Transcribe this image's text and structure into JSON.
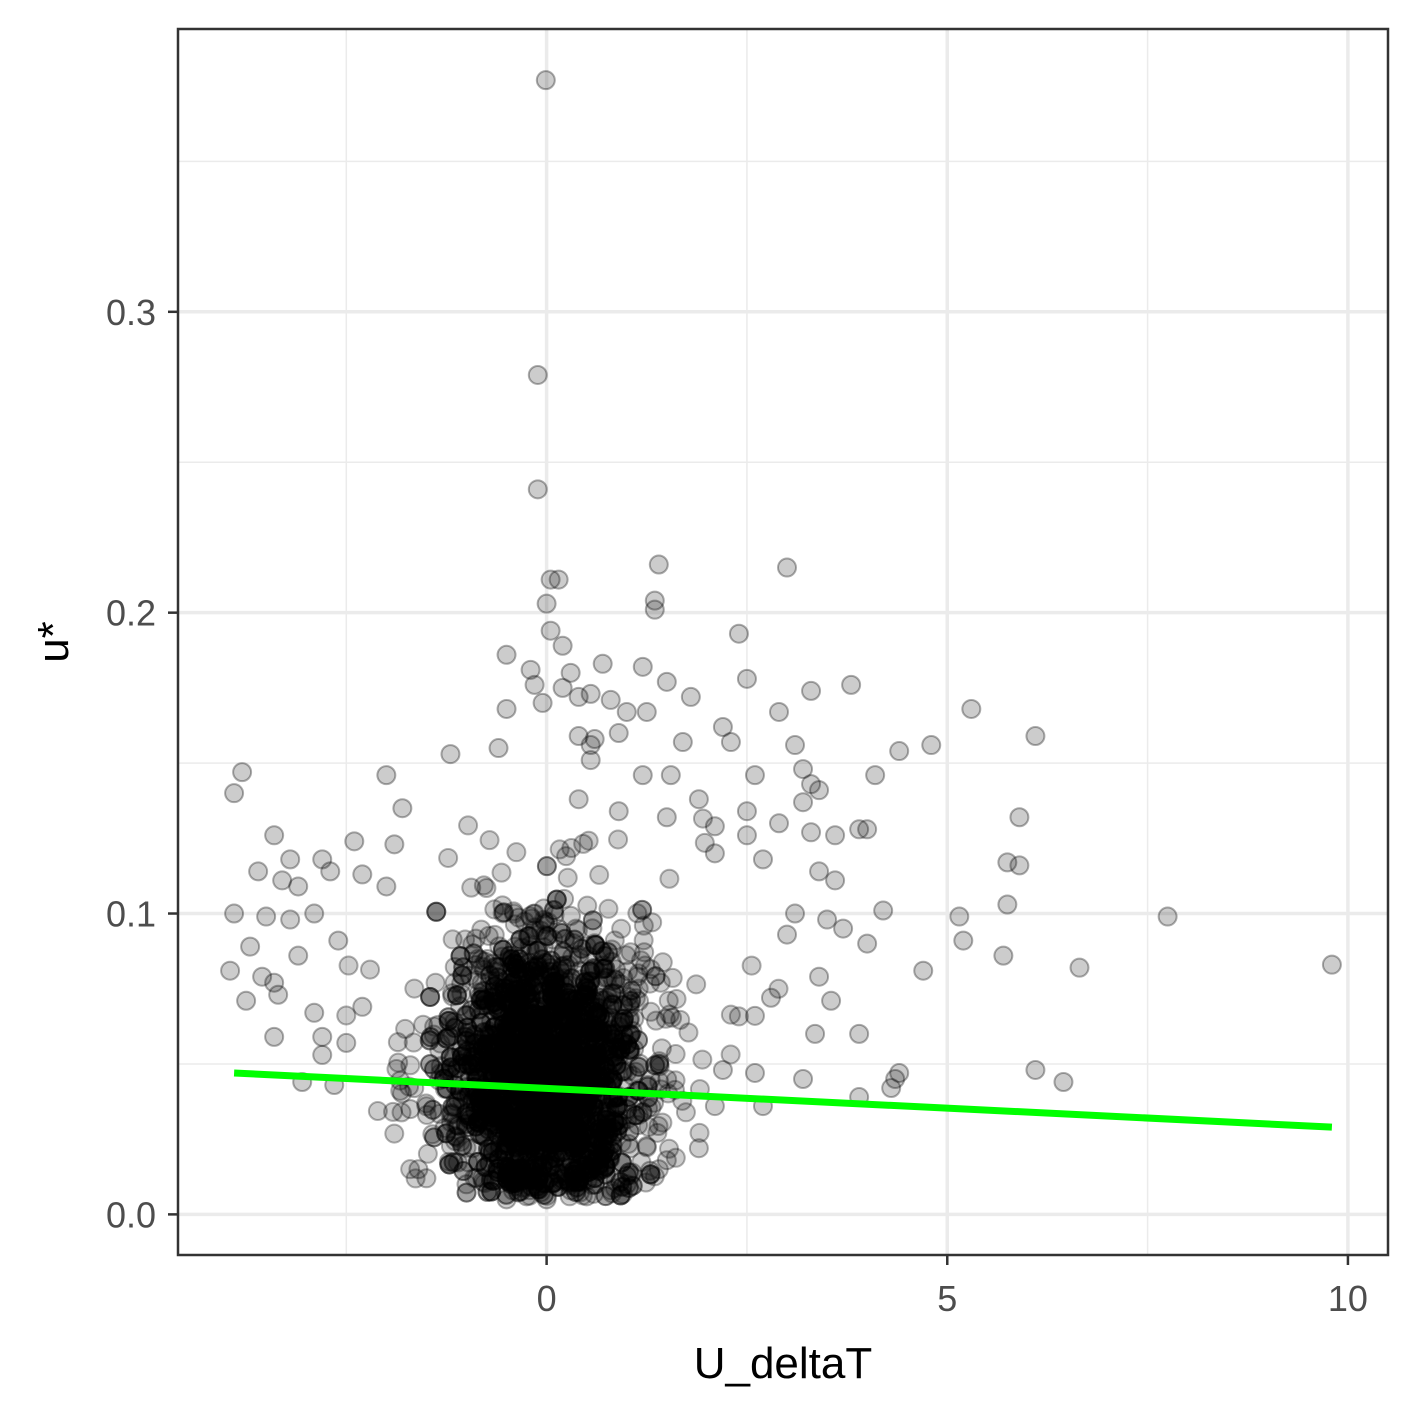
{
  "chart_data": {
    "type": "scatter",
    "xlabel": "U_deltaT",
    "ylabel": "u*",
    "xlim": [
      -4.6,
      10.5
    ],
    "ylim": [
      -0.0135,
      0.394
    ],
    "x_ticks": [
      0,
      5,
      10
    ],
    "x_tick_labels": [
      "0",
      "5",
      "10"
    ],
    "y_ticks": [
      0.0,
      0.1,
      0.2,
      0.3
    ],
    "y_tick_labels": [
      "0.0",
      "0.1",
      "0.2",
      "0.3"
    ],
    "grid": true,
    "legend": "none",
    "colors": {
      "points": "#000000",
      "fit_line": "#00ff00",
      "grid": "#ebebeb",
      "panel_border": "#333333"
    },
    "fit_line": {
      "x": [
        -3.9,
        9.8
      ],
      "y": [
        0.047,
        0.029
      ]
    },
    "points": [
      [
        -0.01,
        0.377
      ],
      [
        -0.11,
        0.279
      ],
      [
        -0.11,
        0.241
      ],
      [
        1.4,
        0.216
      ],
      [
        3.0,
        0.215
      ],
      [
        0.15,
        0.211
      ],
      [
        0.05,
        0.211
      ],
      [
        0.0,
        0.203
      ],
      [
        1.35,
        0.204
      ],
      [
        1.35,
        0.201
      ],
      [
        0.05,
        0.194
      ],
      [
        2.4,
        0.193
      ],
      [
        0.2,
        0.189
      ],
      [
        -0.5,
        0.186
      ],
      [
        0.7,
        0.183
      ],
      [
        1.2,
        0.182
      ],
      [
        -0.2,
        0.181
      ],
      [
        0.3,
        0.18
      ],
      [
        2.5,
        0.178
      ],
      [
        1.5,
        0.177
      ],
      [
        3.8,
        0.176
      ],
      [
        -0.15,
        0.176
      ],
      [
        0.2,
        0.175
      ],
      [
        3.3,
        0.174
      ],
      [
        0.55,
        0.173
      ],
      [
        1.8,
        0.172
      ],
      [
        0.4,
        0.172
      ],
      [
        0.8,
        0.171
      ],
      [
        -0.05,
        0.17
      ],
      [
        -0.5,
        0.168
      ],
      [
        5.3,
        0.168
      ],
      [
        2.9,
        0.167
      ],
      [
        1.0,
        0.167
      ],
      [
        1.25,
        0.167
      ],
      [
        2.2,
        0.162
      ],
      [
        0.9,
        0.16
      ],
      [
        6.1,
        0.159
      ],
      [
        0.4,
        0.159
      ],
      [
        0.6,
        0.158
      ],
      [
        1.7,
        0.157
      ],
      [
        2.3,
        0.157
      ],
      [
        3.1,
        0.156
      ],
      [
        0.55,
        0.156
      ],
      [
        4.8,
        0.156
      ],
      [
        -0.6,
        0.155
      ],
      [
        4.4,
        0.154
      ],
      [
        -1.2,
        0.153
      ],
      [
        0.55,
        0.151
      ],
      [
        3.2,
        0.148
      ],
      [
        -3.8,
        0.147
      ],
      [
        4.1,
        0.146
      ],
      [
        2.6,
        0.146
      ],
      [
        1.2,
        0.146
      ],
      [
        -2.0,
        0.146
      ],
      [
        1.55,
        0.146
      ],
      [
        3.3,
        0.143
      ],
      [
        3.4,
        0.141
      ],
      [
        -3.9,
        0.14
      ],
      [
        1.9,
        0.138
      ],
      [
        0.4,
        0.138
      ],
      [
        3.2,
        0.137
      ],
      [
        0.9,
        0.134
      ],
      [
        2.5,
        0.134
      ],
      [
        1.5,
        0.132
      ],
      [
        -1.8,
        0.135
      ],
      [
        5.9,
        0.132
      ],
      [
        2.9,
        0.13
      ],
      [
        2.1,
        0.129
      ],
      [
        4.0,
        0.128
      ],
      [
        3.9,
        0.128
      ],
      [
        3.3,
        0.127
      ],
      [
        2.5,
        0.126
      ],
      [
        3.6,
        0.126
      ],
      [
        -3.4,
        0.126
      ],
      [
        -2.4,
        0.124
      ],
      [
        -1.9,
        0.123
      ],
      [
        -3.6,
        0.114
      ],
      [
        2.1,
        0.12
      ],
      [
        2.7,
        0.118
      ],
      [
        5.75,
        0.117
      ],
      [
        5.9,
        0.116
      ],
      [
        3.4,
        0.114
      ],
      [
        3.6,
        0.111
      ],
      [
        -3.2,
        0.118
      ],
      [
        -3.3,
        0.111
      ],
      [
        -2.8,
        0.118
      ],
      [
        -2.7,
        0.114
      ],
      [
        -2.3,
        0.113
      ],
      [
        -2.0,
        0.109
      ],
      [
        -3.1,
        0.109
      ],
      [
        -3.9,
        0.1
      ],
      [
        -3.5,
        0.099
      ],
      [
        -3.2,
        0.098
      ],
      [
        -2.9,
        0.1
      ],
      [
        -2.6,
        0.091
      ],
      [
        5.75,
        0.103
      ],
      [
        4.2,
        0.101
      ],
      [
        5.15,
        0.099
      ],
      [
        3.1,
        0.1
      ],
      [
        3.5,
        0.098
      ],
      [
        3.0,
        0.093
      ],
      [
        3.7,
        0.095
      ],
      [
        7.75,
        0.099
      ],
      [
        5.2,
        0.091
      ],
      [
        4.0,
        0.09
      ],
      [
        -3.7,
        0.089
      ],
      [
        -3.1,
        0.086
      ],
      [
        5.7,
        0.086
      ],
      [
        9.8,
        0.083
      ],
      [
        6.65,
        0.082
      ],
      [
        4.7,
        0.081
      ],
      [
        -3.95,
        0.081
      ],
      [
        -3.4,
        0.077
      ],
      [
        -3.55,
        0.079
      ],
      [
        3.4,
        0.079
      ],
      [
        -3.75,
        0.071
      ],
      [
        -3.35,
        0.073
      ],
      [
        2.8,
        0.072
      ],
      [
        3.55,
        0.071
      ],
      [
        -2.3,
        0.069
      ],
      [
        -2.9,
        0.067
      ],
      [
        2.6,
        0.066
      ],
      [
        -3.4,
        0.059
      ],
      [
        3.35,
        0.06
      ],
      [
        3.9,
        0.06
      ],
      [
        -2.8,
        0.059
      ],
      [
        -2.5,
        0.057
      ],
      [
        -2.8,
        0.053
      ],
      [
        2.2,
        0.048
      ],
      [
        2.6,
        0.047
      ],
      [
        -3.05,
        0.044
      ],
      [
        -2.65,
        0.043
      ],
      [
        6.1,
        0.048
      ],
      [
        4.4,
        0.047
      ],
      [
        4.35,
        0.045
      ],
      [
        6.45,
        0.044
      ],
      [
        4.3,
        0.042
      ],
      [
        3.2,
        0.045
      ],
      [
        3.9,
        0.039
      ],
      [
        2.7,
        0.036
      ],
      [
        2.1,
        0.036
      ],
      [
        -1.7,
        0.035
      ],
      [
        1.9,
        0.022
      ],
      [
        1.4,
        0.015
      ],
      [
        1.5,
        0.018
      ],
      [
        -1.6,
        0.015
      ],
      [
        -1.5,
        0.012
      ],
      [
        0.8,
        0.008
      ],
      [
        0.5,
        0.006
      ],
      [
        -0.5,
        0.005
      ],
      [
        0.0,
        0.005
      ],
      [
        -0.25,
        0.006
      ],
      [
        0.3,
        0.008
      ],
      [
        -1.0,
        0.01
      ],
      [
        1.0,
        0.01
      ]
    ]
  }
}
